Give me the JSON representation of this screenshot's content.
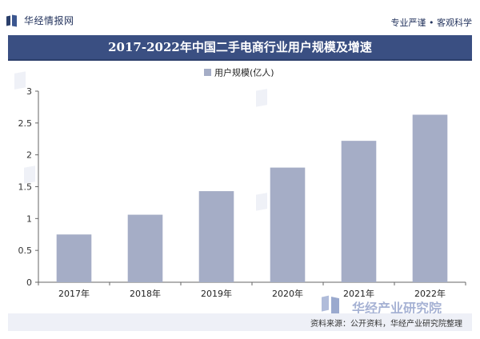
{
  "header": {
    "logo_text": "华经情报网",
    "tagline": "专业严谨 • 客观科学"
  },
  "footer": {
    "source": "资料来源：公开资料，华经产业研究院整理",
    "watermark": "华经产业研究院"
  },
  "colors": {
    "title_bar": "#3a4f82",
    "bar": "#a5adc6",
    "axis": "#666666"
  },
  "chart_data": {
    "type": "bar",
    "title": "2017-2022年中国二手电商行业用户规模及增速",
    "categories": [
      "2017年",
      "2018年",
      "2019年",
      "2020年",
      "2021年",
      "2022年"
    ],
    "series": [
      {
        "name": "用户规模(亿人)",
        "values": [
          0.75,
          1.06,
          1.43,
          1.8,
          2.22,
          2.63
        ]
      }
    ],
    "yticks": [
      "0",
      "0.5",
      "1",
      "1.5",
      "2",
      "2.5",
      "3"
    ],
    "ylim": [
      0,
      3
    ],
    "legend_position": "top-center",
    "grid": false
  }
}
